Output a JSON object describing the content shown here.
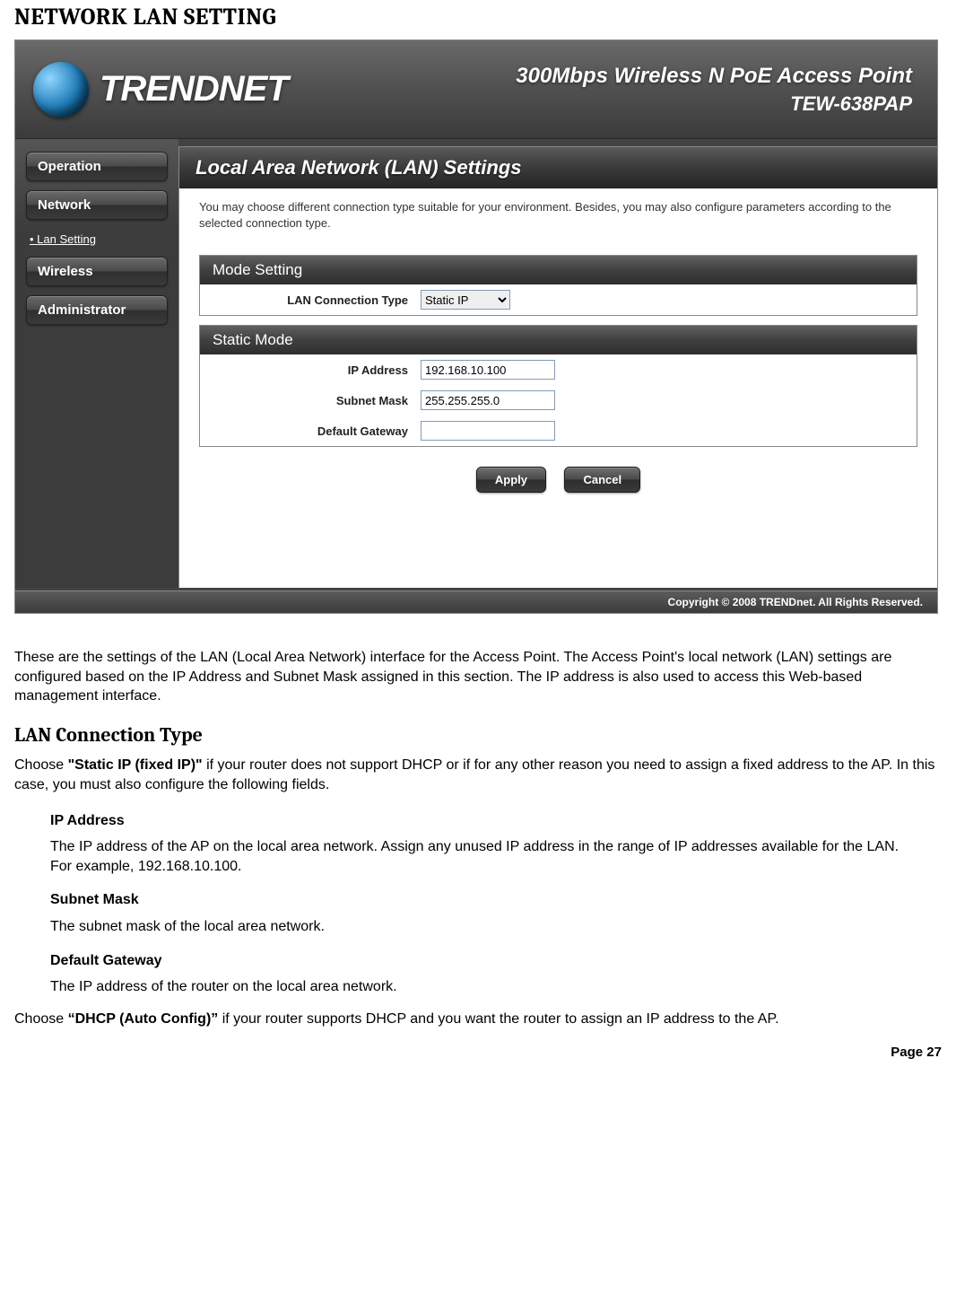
{
  "doc": {
    "heading": "NETWORK LAN SETTING",
    "intro_para": "These are the settings of the LAN (Local Area Network) interface for the Access Point. The Access Point's local network (LAN) settings are configured based on the IP Address and Subnet Mask assigned in this section. The IP address is also used to access this Web-based management interface.",
    "h2": "LAN Connection Type",
    "conn_para_prefix": "Choose ",
    "conn_bold": "\"Static IP (fixed IP)\"",
    "conn_para_suffix": " if your router does not support DHCP or if for any other reason you need to assign a fixed address to the AP. In this case, you must also configure the following fields.",
    "ip_heading": "IP Address",
    "ip_para": "The IP address of the AP on the local area network. Assign any unused IP address in the range of IP addresses available for the LAN. For example, 192.168.10.100.",
    "subnet_heading": "Subnet Mask",
    "subnet_para": "The subnet mask of the local area network.",
    "gateway_heading": "Default Gateway",
    "gateway_para": "The IP address of the router on the local area network.",
    "dhcp_prefix": "Choose ",
    "dhcp_bold": "“DHCP (Auto Config)”",
    "dhcp_suffix": " if your router supports DHCP and you want the router to assign an IP address to the AP.",
    "page_label": "Page 27"
  },
  "screenshot": {
    "brand": "TRENDNET",
    "header_title": "300Mbps Wireless N PoE Access Point",
    "header_model": "TEW-638PAP",
    "nav": {
      "operation": "Operation",
      "network": "Network",
      "lan_setting": "Lan Setting",
      "wireless": "Wireless",
      "administrator": "Administrator"
    },
    "panel_title": "Local Area Network (LAN) Settings",
    "panel_desc": "You may choose different connection type suitable for your environment. Besides, you may also configure parameters according to the selected connection type.",
    "mode_setting": {
      "header": "Mode Setting",
      "label": "LAN Connection Type",
      "value": "Static IP"
    },
    "static_mode": {
      "header": "Static Mode",
      "ip_label": "IP Address",
      "ip_value": "192.168.10.100",
      "subnet_label": "Subnet Mask",
      "subnet_value": "255.255.255.0",
      "gateway_label": "Default Gateway",
      "gateway_value": ""
    },
    "buttons": {
      "apply": "Apply",
      "cancel": "Cancel"
    },
    "footer": "Copyright © 2008 TRENDnet. All Rights Reserved."
  },
  "colors": {
    "page_bg": "#ffffff",
    "ss_dark": "#3c3c3c",
    "ss_header_grad_top": "#6a6a6a",
    "ss_header_grad_bottom": "#3b3b3b",
    "btn_grad_top": "#707070",
    "btn_grad_bottom": "#2e2e2e",
    "input_border": "#7f9db9",
    "text": "#000000",
    "white": "#ffffff"
  },
  "typography": {
    "doc_heading_family": "Cambria, Georgia, serif",
    "doc_heading_size_pt": 20,
    "doc_body_family": "Verdana, Geneva, sans-serif",
    "doc_body_size_pt": 12,
    "ss_font_family": "Arial, sans-serif"
  }
}
